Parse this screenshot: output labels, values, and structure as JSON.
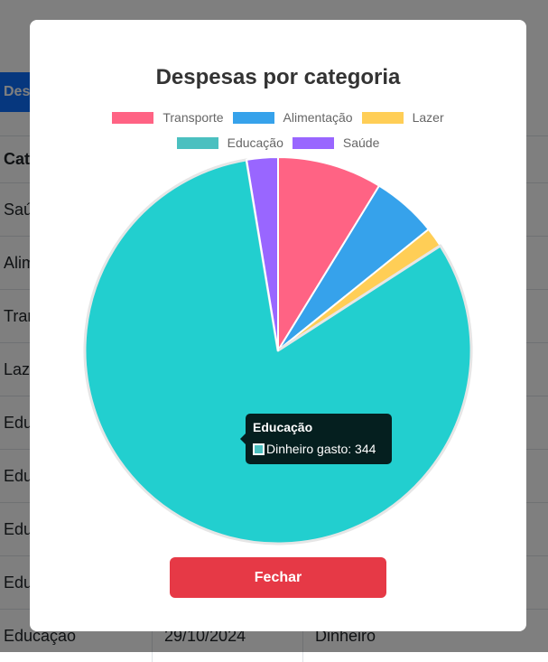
{
  "background": {
    "button_label": "Despesas",
    "table": {
      "headers": [
        "Categoria",
        "",
        ""
      ],
      "rows": [
        [
          "Saúde",
          "",
          ""
        ],
        [
          "Alimentação",
          "",
          ""
        ],
        [
          "Transporte",
          "",
          ""
        ],
        [
          "Lazer",
          "",
          ""
        ],
        [
          "Educação",
          "",
          ""
        ],
        [
          "Educação",
          "",
          ""
        ],
        [
          "Educação",
          "",
          ""
        ],
        [
          "Educação",
          "",
          ""
        ],
        [
          "Educação",
          "29/10/2024",
          "Dinheiro"
        ]
      ]
    }
  },
  "modal": {
    "title": "Despesas por categoria",
    "close_label": "Fechar",
    "tooltip": {
      "title": "Educação",
      "label": "Dinheiro gasto: 344",
      "color": "#4BC0C0"
    }
  },
  "chart_data": {
    "type": "pie",
    "title": "Despesas por categoria",
    "legend_position": "top",
    "series_label": "Dinheiro gasto",
    "categories": [
      "Transporte",
      "Alimentação",
      "Lazer",
      "Educação",
      "Saúde"
    ],
    "values": [
      37,
      23,
      7,
      344,
      11
    ],
    "colors": [
      "#FF6384",
      "#36A2EB",
      "#FFCE56",
      "#22CFCF",
      "#9966FF"
    ],
    "legend_colors": [
      "#FF6384",
      "#36A2EB",
      "#FFCE56",
      "#4BC0C0",
      "#9966FF"
    ]
  }
}
